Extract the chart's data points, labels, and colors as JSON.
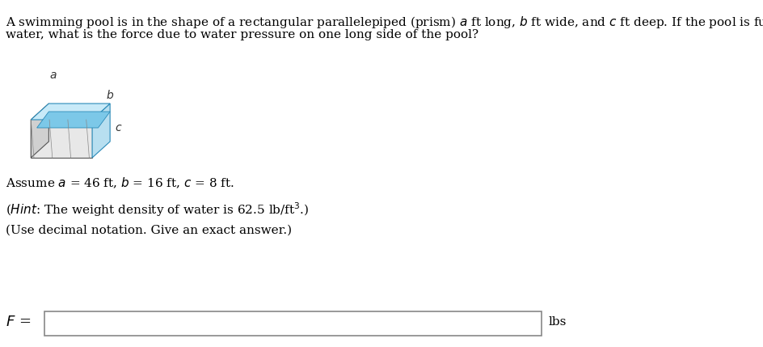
{
  "title_text": "A swimming pool is in the shape of a rectangular parallelepiped (prism) $a$ ft long, $b$ ft wide, and $c$ ft deep. If the pool is full of\nwater, what is the force due to water pressure on one long side of the pool?",
  "assume_text": "Assume $a$ = 46 ft, $b$ = 16 ft, $c$ = 8 ft.",
  "hint_text": "($Hint$: The weight density of water is 62.5 lb/ft³.)",
  "notation_text": "(Use decimal notation. Give an exact answer.)",
  "f_label": "$F$ =",
  "lbs_label": "lbs",
  "bg_color": "#ffffff",
  "text_color": "#000000",
  "box_color": "#4db8e8",
  "box_fill_top": "#a8daf0",
  "box_fill_side": "#d0ecf8",
  "box_edge_color": "#2a8ab8",
  "input_box_color": "#c0c0c0"
}
